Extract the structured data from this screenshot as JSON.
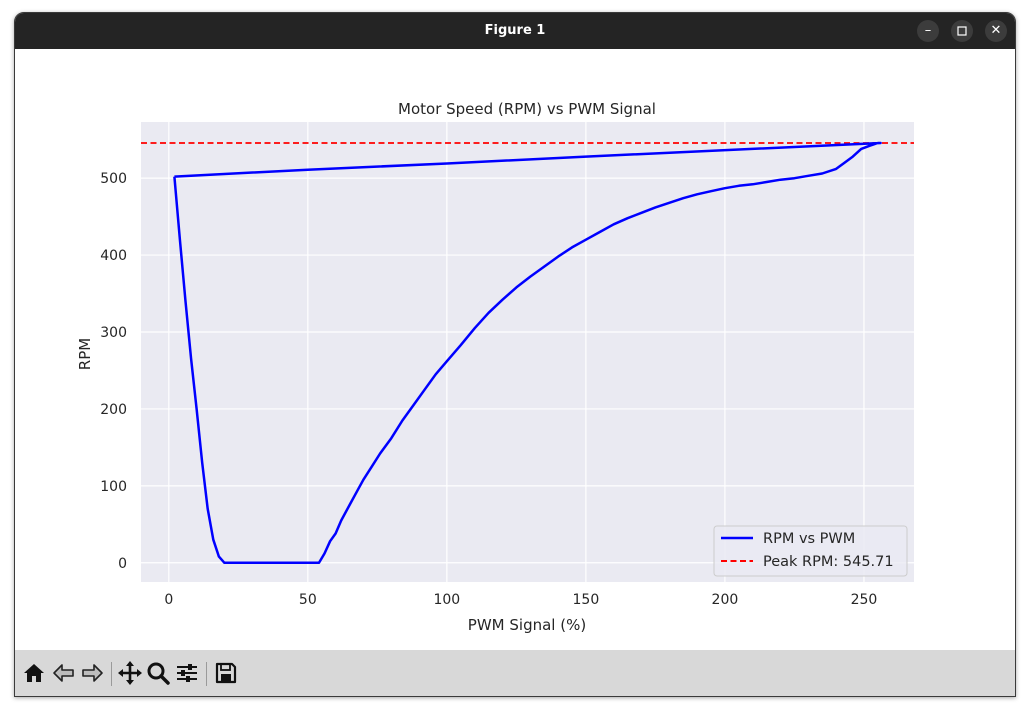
{
  "window": {
    "title": "Figure 1",
    "controls": {
      "minimize_icon": "minimize-icon",
      "maximize_icon": "maximize-icon",
      "close_icon": "close-icon"
    }
  },
  "toolbar": {
    "buttons": [
      {
        "name": "home-button",
        "icon": "home-icon"
      },
      {
        "name": "back-button",
        "icon": "back-arrow-icon"
      },
      {
        "name": "forward-button",
        "icon": "forward-arrow-icon"
      },
      {
        "name": "pan-button",
        "icon": "move-icon"
      },
      {
        "name": "zoom-button",
        "icon": "magnifier-icon"
      },
      {
        "name": "configure-subplots-button",
        "icon": "sliders-icon"
      },
      {
        "name": "save-button",
        "icon": "floppy-disk-icon"
      }
    ]
  },
  "chart_data": {
    "type": "line",
    "title": "Motor Speed (RPM) vs PWM Signal",
    "xlabel": "PWM Signal (%)",
    "ylabel": "RPM",
    "xlim": [
      -10,
      268
    ],
    "ylim": [
      -25,
      573
    ],
    "xticks": [
      0,
      50,
      100,
      150,
      200,
      250
    ],
    "yticks": [
      0,
      100,
      200,
      300,
      400,
      500
    ],
    "grid": true,
    "background": "#eaeaf2",
    "legend_position": "lower-right",
    "series": [
      {
        "name": "RPM vs PWM",
        "color": "#0000ff",
        "style": "solid",
        "x": [
          2,
          4,
          6,
          8,
          10,
          12,
          14,
          16,
          18,
          20,
          25,
          30,
          35,
          40,
          45,
          50,
          54,
          56,
          58,
          60,
          62,
          65,
          68,
          70,
          73,
          76,
          80,
          84,
          88,
          92,
          96,
          100,
          105,
          110,
          115,
          120,
          125,
          130,
          135,
          140,
          145,
          150,
          155,
          160,
          165,
          170,
          175,
          180,
          185,
          190,
          195,
          200,
          205,
          210,
          215,
          220,
          225,
          230,
          235,
          240,
          243,
          246,
          249,
          252,
          255,
          256,
          150,
          100,
          50,
          2
        ],
        "y": [
          502,
          420,
          340,
          265,
          200,
          130,
          70,
          30,
          8,
          0,
          0,
          0,
          0,
          0,
          0,
          0,
          0,
          12,
          28,
          38,
          55,
          75,
          95,
          108,
          125,
          142,
          162,
          185,
          205,
          225,
          245,
          262,
          283,
          305,
          325,
          342,
          358,
          372,
          385,
          398,
          410,
          420,
          430,
          440,
          448,
          455,
          462,
          468,
          474,
          479,
          483,
          487,
          490,
          492,
          495,
          498,
          500,
          503,
          506,
          512,
          520,
          528,
          538,
          542,
          545.71,
          545.71,
          528,
          519,
          511,
          502
        ]
      }
    ],
    "reference_lines": [
      {
        "name": "Peak RPM: 545.71",
        "y": 545.71,
        "color": "#ff0000",
        "style": "dashed"
      }
    ]
  }
}
